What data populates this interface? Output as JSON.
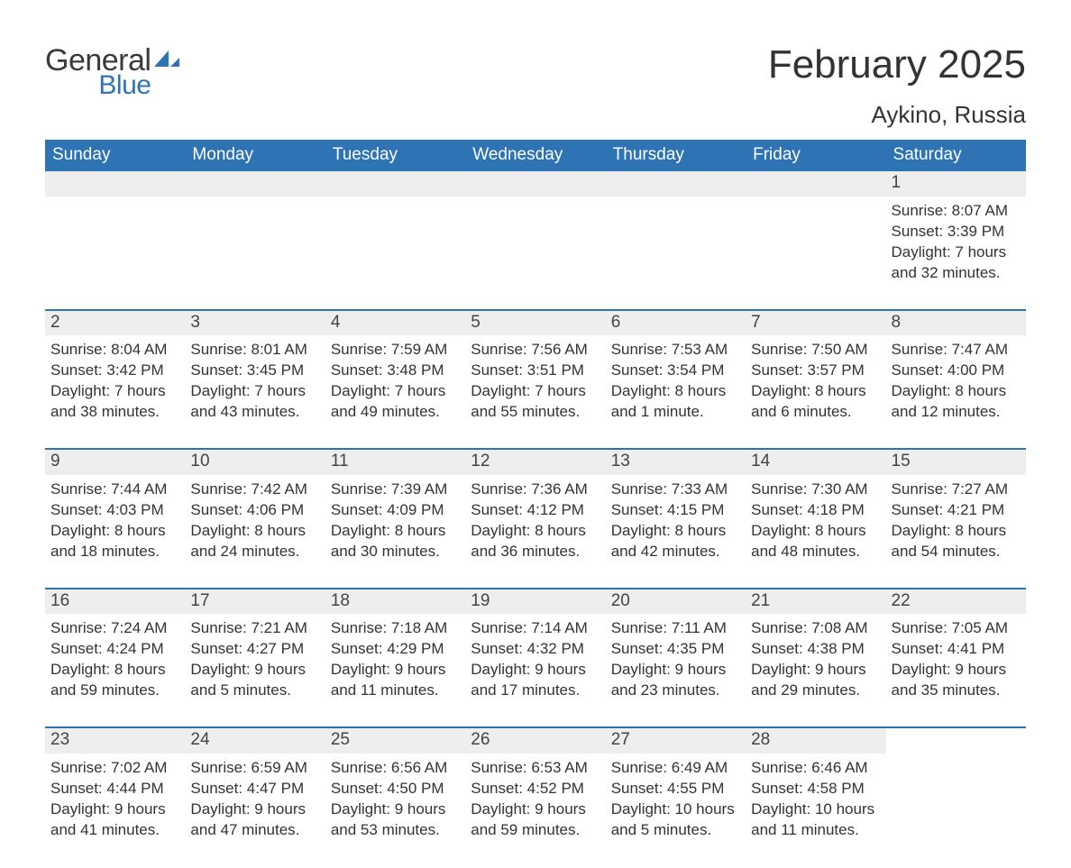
{
  "colors": {
    "header_bg": "#2e74b5",
    "header_text": "#ffffff",
    "daynum_bg": "#eeeeee",
    "daynum_text": "#444444",
    "body_text": "#333333",
    "rule": "#2e74b5",
    "logo_gray": "#3a3a3a",
    "logo_blue": "#2e74b5",
    "page_bg": "#ffffff"
  },
  "typography": {
    "title_fontsize": 44,
    "location_fontsize": 26,
    "dow_fontsize": 19,
    "daynum_fontsize": 19,
    "body_fontsize": 17,
    "font_family": "Arial"
  },
  "logo": {
    "text1": "General",
    "text2": "Blue"
  },
  "title": "February 2025",
  "location": "Aykino, Russia",
  "days_of_week": [
    "Sunday",
    "Monday",
    "Tuesday",
    "Wednesday",
    "Thursday",
    "Friday",
    "Saturday"
  ],
  "weeks": [
    [
      {
        "empty": true
      },
      {
        "empty": true
      },
      {
        "empty": true
      },
      {
        "empty": true
      },
      {
        "empty": true
      },
      {
        "empty": true
      },
      {
        "num": "1",
        "sunrise": "Sunrise: 8:07 AM",
        "sunset": "Sunset: 3:39 PM",
        "dl1": "Daylight: 7 hours",
        "dl2": "and 32 minutes."
      }
    ],
    [
      {
        "num": "2",
        "sunrise": "Sunrise: 8:04 AM",
        "sunset": "Sunset: 3:42 PM",
        "dl1": "Daylight: 7 hours",
        "dl2": "and 38 minutes."
      },
      {
        "num": "3",
        "sunrise": "Sunrise: 8:01 AM",
        "sunset": "Sunset: 3:45 PM",
        "dl1": "Daylight: 7 hours",
        "dl2": "and 43 minutes."
      },
      {
        "num": "4",
        "sunrise": "Sunrise: 7:59 AM",
        "sunset": "Sunset: 3:48 PM",
        "dl1": "Daylight: 7 hours",
        "dl2": "and 49 minutes."
      },
      {
        "num": "5",
        "sunrise": "Sunrise: 7:56 AM",
        "sunset": "Sunset: 3:51 PM",
        "dl1": "Daylight: 7 hours",
        "dl2": "and 55 minutes."
      },
      {
        "num": "6",
        "sunrise": "Sunrise: 7:53 AM",
        "sunset": "Sunset: 3:54 PM",
        "dl1": "Daylight: 8 hours",
        "dl2": "and 1 minute."
      },
      {
        "num": "7",
        "sunrise": "Sunrise: 7:50 AM",
        "sunset": "Sunset: 3:57 PM",
        "dl1": "Daylight: 8 hours",
        "dl2": "and 6 minutes."
      },
      {
        "num": "8",
        "sunrise": "Sunrise: 7:47 AM",
        "sunset": "Sunset: 4:00 PM",
        "dl1": "Daylight: 8 hours",
        "dl2": "and 12 minutes."
      }
    ],
    [
      {
        "num": "9",
        "sunrise": "Sunrise: 7:44 AM",
        "sunset": "Sunset: 4:03 PM",
        "dl1": "Daylight: 8 hours",
        "dl2": "and 18 minutes."
      },
      {
        "num": "10",
        "sunrise": "Sunrise: 7:42 AM",
        "sunset": "Sunset: 4:06 PM",
        "dl1": "Daylight: 8 hours",
        "dl2": "and 24 minutes."
      },
      {
        "num": "11",
        "sunrise": "Sunrise: 7:39 AM",
        "sunset": "Sunset: 4:09 PM",
        "dl1": "Daylight: 8 hours",
        "dl2": "and 30 minutes."
      },
      {
        "num": "12",
        "sunrise": "Sunrise: 7:36 AM",
        "sunset": "Sunset: 4:12 PM",
        "dl1": "Daylight: 8 hours",
        "dl2": "and 36 minutes."
      },
      {
        "num": "13",
        "sunrise": "Sunrise: 7:33 AM",
        "sunset": "Sunset: 4:15 PM",
        "dl1": "Daylight: 8 hours",
        "dl2": "and 42 minutes."
      },
      {
        "num": "14",
        "sunrise": "Sunrise: 7:30 AM",
        "sunset": "Sunset: 4:18 PM",
        "dl1": "Daylight: 8 hours",
        "dl2": "and 48 minutes."
      },
      {
        "num": "15",
        "sunrise": "Sunrise: 7:27 AM",
        "sunset": "Sunset: 4:21 PM",
        "dl1": "Daylight: 8 hours",
        "dl2": "and 54 minutes."
      }
    ],
    [
      {
        "num": "16",
        "sunrise": "Sunrise: 7:24 AM",
        "sunset": "Sunset: 4:24 PM",
        "dl1": "Daylight: 8 hours",
        "dl2": "and 59 minutes."
      },
      {
        "num": "17",
        "sunrise": "Sunrise: 7:21 AM",
        "sunset": "Sunset: 4:27 PM",
        "dl1": "Daylight: 9 hours",
        "dl2": "and 5 minutes."
      },
      {
        "num": "18",
        "sunrise": "Sunrise: 7:18 AM",
        "sunset": "Sunset: 4:29 PM",
        "dl1": "Daylight: 9 hours",
        "dl2": "and 11 minutes."
      },
      {
        "num": "19",
        "sunrise": "Sunrise: 7:14 AM",
        "sunset": "Sunset: 4:32 PM",
        "dl1": "Daylight: 9 hours",
        "dl2": "and 17 minutes."
      },
      {
        "num": "20",
        "sunrise": "Sunrise: 7:11 AM",
        "sunset": "Sunset: 4:35 PM",
        "dl1": "Daylight: 9 hours",
        "dl2": "and 23 minutes."
      },
      {
        "num": "21",
        "sunrise": "Sunrise: 7:08 AM",
        "sunset": "Sunset: 4:38 PM",
        "dl1": "Daylight: 9 hours",
        "dl2": "and 29 minutes."
      },
      {
        "num": "22",
        "sunrise": "Sunrise: 7:05 AM",
        "sunset": "Sunset: 4:41 PM",
        "dl1": "Daylight: 9 hours",
        "dl2": "and 35 minutes."
      }
    ],
    [
      {
        "num": "23",
        "sunrise": "Sunrise: 7:02 AM",
        "sunset": "Sunset: 4:44 PM",
        "dl1": "Daylight: 9 hours",
        "dl2": "and 41 minutes."
      },
      {
        "num": "24",
        "sunrise": "Sunrise: 6:59 AM",
        "sunset": "Sunset: 4:47 PM",
        "dl1": "Daylight: 9 hours",
        "dl2": "and 47 minutes."
      },
      {
        "num": "25",
        "sunrise": "Sunrise: 6:56 AM",
        "sunset": "Sunset: 4:50 PM",
        "dl1": "Daylight: 9 hours",
        "dl2": "and 53 minutes."
      },
      {
        "num": "26",
        "sunrise": "Sunrise: 6:53 AM",
        "sunset": "Sunset: 4:52 PM",
        "dl1": "Daylight: 9 hours",
        "dl2": "and 59 minutes."
      },
      {
        "num": "27",
        "sunrise": "Sunrise: 6:49 AM",
        "sunset": "Sunset: 4:55 PM",
        "dl1": "Daylight: 10 hours",
        "dl2": "and 5 minutes."
      },
      {
        "num": "28",
        "sunrise": "Sunrise: 6:46 AM",
        "sunset": "Sunset: 4:58 PM",
        "dl1": "Daylight: 10 hours",
        "dl2": "and 11 minutes."
      },
      {
        "empty": true,
        "noBar": true
      }
    ]
  ]
}
